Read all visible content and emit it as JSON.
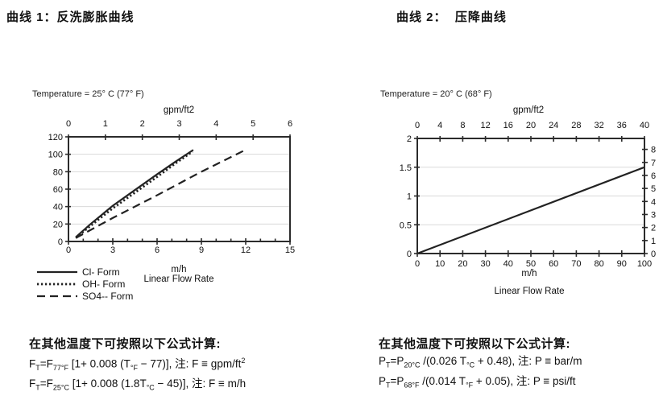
{
  "colors": {
    "axis": "#2b2b2b",
    "grid": "#d9d9d9",
    "series": "#222222",
    "text": "#111111"
  },
  "chart_data": [
    {
      "type": "line",
      "title": "曲线 1：反洗膨胀曲线",
      "temperature": "Temperature = 25° C (77° F)",
      "top_axis": {
        "label": "gpm/ft2",
        "min": 0,
        "max": 6,
        "ticks": [
          0,
          1,
          2,
          3,
          4,
          5,
          6
        ]
      },
      "bottom_axis": {
        "unit": "m/h",
        "label": "Linear Flow Rate",
        "min": 0,
        "max": 15,
        "ticks": [
          0,
          3,
          6,
          9,
          12,
          15
        ],
        "minor_step": 1
      },
      "left_axis": {
        "min": 0,
        "max": 120,
        "ticks": [
          0,
          20,
          40,
          60,
          80,
          100,
          120
        ]
      },
      "gridlines": [
        20,
        40,
        60,
        80,
        100
      ],
      "legend_position": "bottom-left",
      "series": [
        {
          "name": "Cl- Form",
          "style": "solid",
          "points": [
            [
              0.5,
              5
            ],
            [
              1.5,
              20
            ],
            [
              3,
              41
            ],
            [
              4.5,
              59
            ],
            [
              6,
              77
            ],
            [
              7.2,
              91
            ],
            [
              8.45,
              105
            ]
          ]
        },
        {
          "name": "OH- Form",
          "style": "dotted",
          "points": [
            [
              0.5,
              4
            ],
            [
              1.5,
              18
            ],
            [
              3,
              38
            ],
            [
              4.5,
              56
            ],
            [
              6,
              74
            ],
            [
              7.2,
              89
            ],
            [
              8.4,
              103
            ]
          ]
        },
        {
          "name": "SO4-- Form",
          "style": "dashed",
          "points": [
            [
              0.5,
              4
            ],
            [
              3,
              27
            ],
            [
              6,
              53
            ],
            [
              9,
              80
            ],
            [
              12.1,
              106
            ]
          ]
        }
      ]
    },
    {
      "type": "line",
      "title": "曲线 2：  压降曲线",
      "temperature": "Temperature = 20° C (68° F)",
      "top_axis": {
        "label": "gpm/ft2",
        "min": 0,
        "max": 40,
        "ticks": [
          0,
          4,
          8,
          12,
          16,
          20,
          24,
          28,
          32,
          36,
          40
        ]
      },
      "bottom_axis": {
        "unit": "m/h",
        "label": "Linear Flow Rate",
        "min": 0,
        "max": 100,
        "ticks": [
          0,
          10,
          20,
          30,
          40,
          50,
          60,
          70,
          80,
          90,
          100
        ]
      },
      "left_axis": {
        "min": 0,
        "max": 2,
        "ticks": [
          0,
          0.5,
          1,
          1.5,
          2
        ]
      },
      "right_axis": {
        "min": 0,
        "max": 8.84,
        "ticks": [
          0,
          1,
          2,
          3,
          4,
          5,
          6,
          7,
          8
        ]
      },
      "gridlines": [
        0.5,
        1,
        1.5
      ],
      "series": [
        {
          "name": "pressure drop",
          "style": "solid",
          "points": [
            [
              0,
              0
            ],
            [
              100,
              1.5
            ]
          ]
        }
      ]
    }
  ],
  "formulas": [
    {
      "heading": "在其他温度下可按照以下公式计算:",
      "lines": [
        [
          [
            "t",
            "F"
          ],
          [
            "sub",
            "T"
          ],
          [
            "t",
            "=F"
          ],
          [
            "sub",
            "77°F"
          ],
          [
            "t",
            " [1+ 0.008 (T"
          ],
          [
            "sub",
            "°F"
          ],
          [
            "t",
            " − 77)], 注: F ≡ gpm/ft"
          ],
          [
            "sup",
            "2"
          ]
        ],
        [
          [
            "t",
            "F"
          ],
          [
            "sub",
            "T"
          ],
          [
            "t",
            "=F"
          ],
          [
            "sub",
            "25°C"
          ],
          [
            "t",
            " [1+ 0.008 (1.8T"
          ],
          [
            "sub",
            "°C"
          ],
          [
            "t",
            " − 45)], 注: F ≡ m/h"
          ]
        ]
      ]
    },
    {
      "heading": "在其他温度下可按照以下公式计算:",
      "lines": [
        [
          [
            "t",
            "P"
          ],
          [
            "sub",
            "T"
          ],
          [
            "t",
            "=P"
          ],
          [
            "sub",
            "20°C"
          ],
          [
            "t",
            " /(0.026 T"
          ],
          [
            "sub",
            "°C"
          ],
          [
            "t",
            " + 0.48), 注: P ≡ bar/m"
          ]
        ],
        [
          [
            "t",
            "P"
          ],
          [
            "sub",
            "T"
          ],
          [
            "t",
            "=P"
          ],
          [
            "sub",
            "68°F"
          ],
          [
            "t",
            " /(0.014 T"
          ],
          [
            "sub",
            "°F"
          ],
          [
            "t",
            " + 0.05), 注: P ≡ psi/ft"
          ]
        ]
      ]
    }
  ]
}
